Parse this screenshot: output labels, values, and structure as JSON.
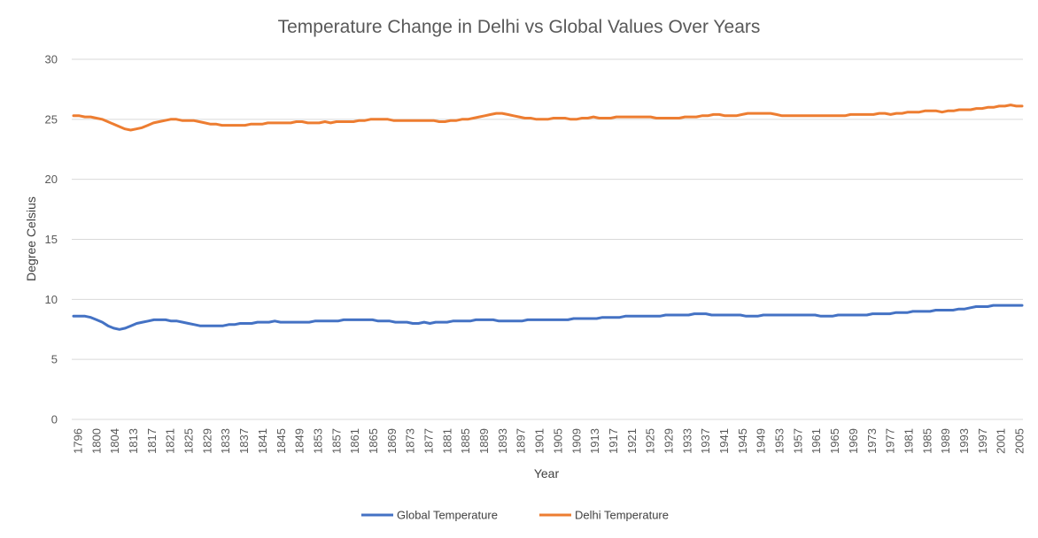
{
  "chart_data": {
    "type": "line",
    "title": "Temperature Change in Delhi vs Global Values Over Years",
    "xlabel": "Year",
    "ylabel": "Degree Celsius",
    "ylim": [
      0,
      30
    ],
    "yticks": [
      0,
      5,
      10,
      15,
      20,
      25,
      30
    ],
    "grid": "horizontal",
    "legend_position": "bottom",
    "x_tick_labels": [
      "1796",
      "1800",
      "1804",
      "1813",
      "1817",
      "1821",
      "1825",
      "1829",
      "1833",
      "1837",
      "1841",
      "1845",
      "1849",
      "1853",
      "1857",
      "1861",
      "1865",
      "1869",
      "1873",
      "1877",
      "1881",
      "1885",
      "1889",
      "1893",
      "1897",
      "1901",
      "1905",
      "1909",
      "1913",
      "1917",
      "1921",
      "1925",
      "1929",
      "1933",
      "1937",
      "1941",
      "1945",
      "1949",
      "1953",
      "1957",
      "1961",
      "1965",
      "1969",
      "1973",
      "1977",
      "1981",
      "1985",
      "1989",
      "1993",
      "1997",
      "2001",
      "2005"
    ],
    "series": [
      {
        "name": "Global Temperature",
        "color": "#4472C4",
        "values": [
          8.6,
          8.6,
          8.6,
          8.5,
          8.3,
          8.1,
          7.8,
          7.6,
          7.5,
          7.6,
          7.8,
          8.0,
          8.1,
          8.2,
          8.3,
          8.3,
          8.3,
          8.2,
          8.2,
          8.1,
          8.0,
          7.9,
          7.8,
          7.8,
          7.8,
          7.8,
          7.8,
          7.9,
          7.9,
          8.0,
          8.0,
          8.0,
          8.1,
          8.1,
          8.1,
          8.2,
          8.1,
          8.1,
          8.1,
          8.1,
          8.1,
          8.1,
          8.2,
          8.2,
          8.2,
          8.2,
          8.2,
          8.3,
          8.3,
          8.3,
          8.3,
          8.3,
          8.3,
          8.2,
          8.2,
          8.2,
          8.1,
          8.1,
          8.1,
          8.0,
          8.0,
          8.1,
          8.0,
          8.1,
          8.1,
          8.1,
          8.2,
          8.2,
          8.2,
          8.2,
          8.3,
          8.3,
          8.3,
          8.3,
          8.2,
          8.2,
          8.2,
          8.2,
          8.2,
          8.3,
          8.3,
          8.3,
          8.3,
          8.3,
          8.3,
          8.3,
          8.3,
          8.4,
          8.4,
          8.4,
          8.4,
          8.4,
          8.5,
          8.5,
          8.5,
          8.5,
          8.6,
          8.6,
          8.6,
          8.6,
          8.6,
          8.6,
          8.6,
          8.7,
          8.7,
          8.7,
          8.7,
          8.7,
          8.8,
          8.8,
          8.8,
          8.7,
          8.7,
          8.7,
          8.7,
          8.7,
          8.7,
          8.6,
          8.6,
          8.6,
          8.7,
          8.7,
          8.7,
          8.7,
          8.7,
          8.7,
          8.7,
          8.7,
          8.7,
          8.7,
          8.6,
          8.6,
          8.6,
          8.7,
          8.7,
          8.7,
          8.7,
          8.7,
          8.7,
          8.8,
          8.8,
          8.8,
          8.8,
          8.9,
          8.9,
          8.9,
          9.0,
          9.0,
          9.0,
          9.0,
          9.1,
          9.1,
          9.1,
          9.1,
          9.2,
          9.2,
          9.3,
          9.4,
          9.4,
          9.4,
          9.5,
          9.5,
          9.5,
          9.5,
          9.5,
          9.5
        ]
      },
      {
        "name": "Delhi Temperature",
        "color": "#ED7D31",
        "values": [
          25.3,
          25.3,
          25.2,
          25.2,
          25.1,
          25.0,
          24.8,
          24.6,
          24.4,
          24.2,
          24.1,
          24.2,
          24.3,
          24.5,
          24.7,
          24.8,
          24.9,
          25.0,
          25.0,
          24.9,
          24.9,
          24.9,
          24.8,
          24.7,
          24.6,
          24.6,
          24.5,
          24.5,
          24.5,
          24.5,
          24.5,
          24.6,
          24.6,
          24.6,
          24.7,
          24.7,
          24.7,
          24.7,
          24.7,
          24.8,
          24.8,
          24.7,
          24.7,
          24.7,
          24.8,
          24.7,
          24.8,
          24.8,
          24.8,
          24.8,
          24.9,
          24.9,
          25.0,
          25.0,
          25.0,
          25.0,
          24.9,
          24.9,
          24.9,
          24.9,
          24.9,
          24.9,
          24.9,
          24.9,
          24.8,
          24.8,
          24.9,
          24.9,
          25.0,
          25.0,
          25.1,
          25.2,
          25.3,
          25.4,
          25.5,
          25.5,
          25.4,
          25.3,
          25.2,
          25.1,
          25.1,
          25.0,
          25.0,
          25.0,
          25.1,
          25.1,
          25.1,
          25.0,
          25.0,
          25.1,
          25.1,
          25.2,
          25.1,
          25.1,
          25.1,
          25.2,
          25.2,
          25.2,
          25.2,
          25.2,
          25.2,
          25.2,
          25.1,
          25.1,
          25.1,
          25.1,
          25.1,
          25.2,
          25.2,
          25.2,
          25.3,
          25.3,
          25.4,
          25.4,
          25.3,
          25.3,
          25.3,
          25.4,
          25.5,
          25.5,
          25.5,
          25.5,
          25.5,
          25.4,
          25.3,
          25.3,
          25.3,
          25.3,
          25.3,
          25.3,
          25.3,
          25.3,
          25.3,
          25.3,
          25.3,
          25.3,
          25.4,
          25.4,
          25.4,
          25.4,
          25.4,
          25.5,
          25.5,
          25.4,
          25.5,
          25.5,
          25.6,
          25.6,
          25.6,
          25.7,
          25.7,
          25.7,
          25.6,
          25.7,
          25.7,
          25.8,
          25.8,
          25.8,
          25.9,
          25.9,
          26.0,
          26.0,
          26.1,
          26.1,
          26.2,
          26.1,
          26.1
        ]
      }
    ]
  }
}
